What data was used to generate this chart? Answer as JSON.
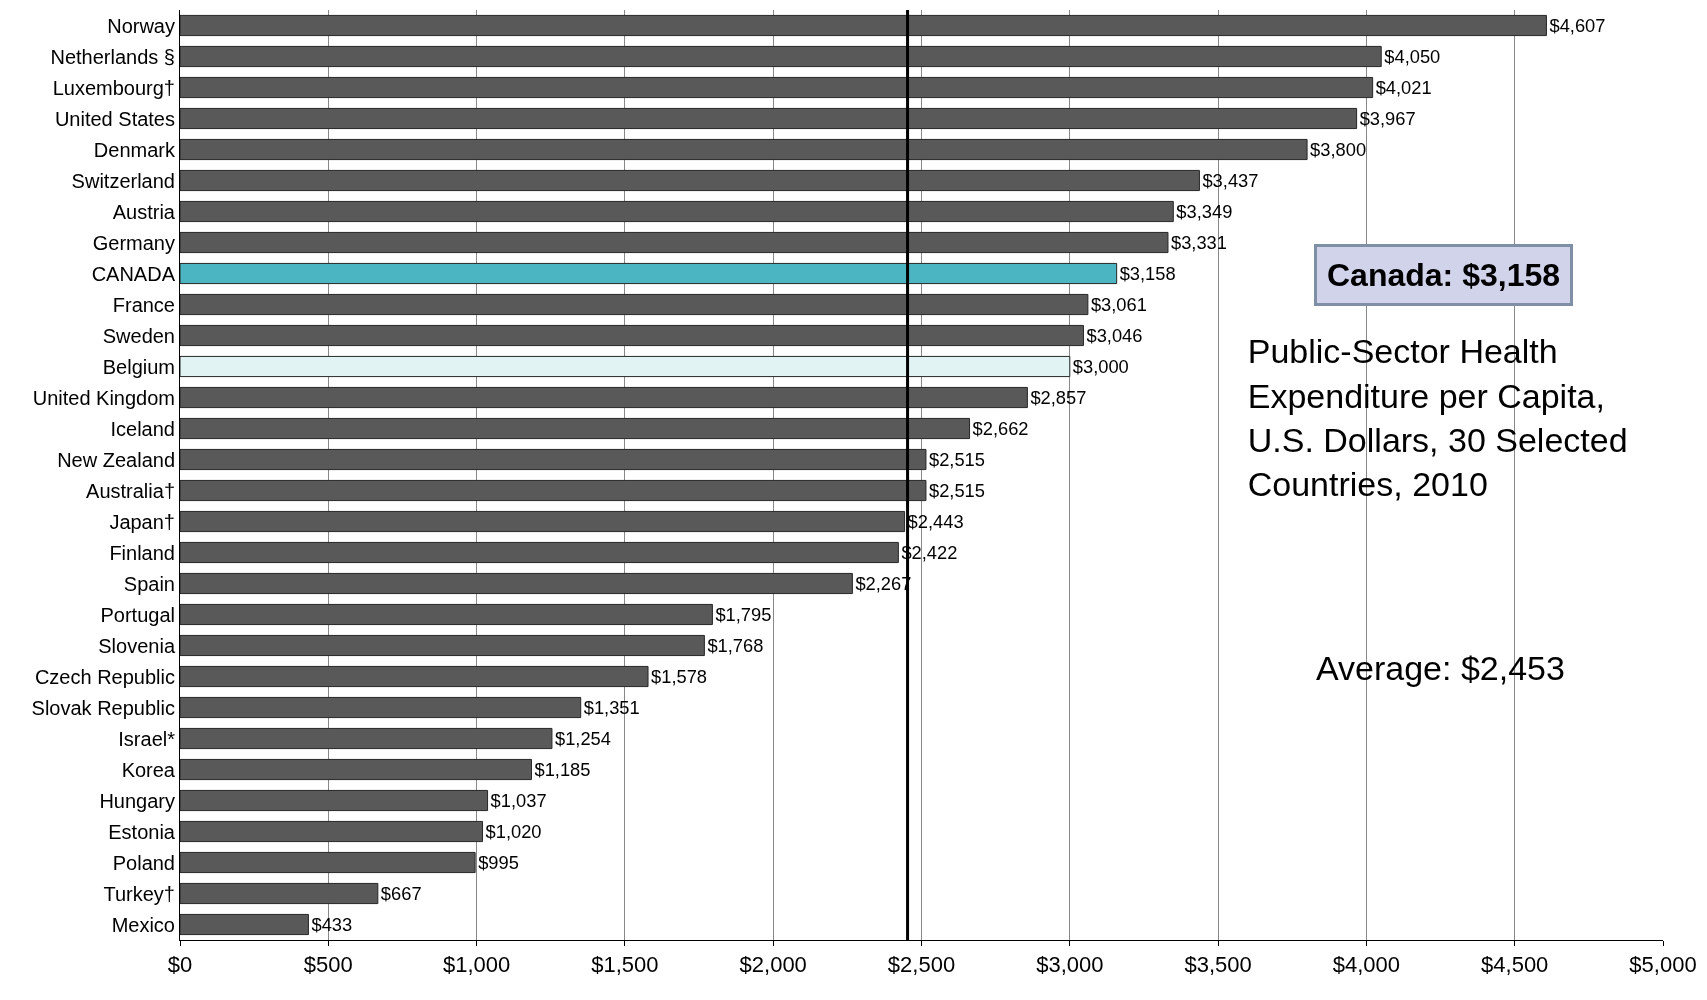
{
  "chart_data": {
    "type": "bar",
    "orientation": "horizontal",
    "title": "Public-Sector Health Expenditure per Capita, U.S. Dollars, 30 Selected Countries, 2010",
    "categories": [
      "Norway",
      "Netherlands §",
      "Luxembourg†",
      "United States",
      "Denmark",
      "Switzerland",
      "Austria",
      "Germany",
      "CANADA",
      "France",
      "Sweden",
      "Belgium",
      "United Kingdom",
      "Iceland",
      "New Zealand",
      "Australia†",
      "Japan†",
      "Finland",
      "Spain",
      "Portugal",
      "Slovenia",
      "Czech Republic",
      "Slovak Republic",
      "Israel*",
      "Korea",
      "Hungary",
      "Estonia",
      "Poland",
      "Turkey†",
      "Mexico"
    ],
    "values": [
      4607,
      4050,
      4021,
      3967,
      3800,
      3437,
      3349,
      3331,
      3158,
      3061,
      3046,
      3000,
      2857,
      2662,
      2515,
      2515,
      2443,
      2422,
      2267,
      1795,
      1768,
      1578,
      1351,
      1254,
      1185,
      1037,
      1020,
      995,
      667,
      433
    ],
    "value_labels": [
      "$4,607",
      "$4,050",
      "$4,021",
      "$3,967",
      "$3,800",
      "$3,437",
      "$3,349",
      "$3,331",
      "$3,158",
      "$3,061",
      "$3,046",
      "$3,000",
      "$2,857",
      "$2,662",
      "$2,515",
      "$2,515",
      "$2,443",
      "$2,422",
      "$2,267",
      "$1,795",
      "$1,768",
      "$1,578",
      "$1,351",
      "$1,254",
      "$1,185",
      "$1,037",
      "$1,020",
      "$995",
      "$667",
      "$433"
    ],
    "colors": [
      "#595959",
      "#595959",
      "#595959",
      "#595959",
      "#595959",
      "#595959",
      "#595959",
      "#595959",
      "#4bb5c1",
      "#595959",
      "#595959",
      "#e2f3f4",
      "#595959",
      "#595959",
      "#595959",
      "#595959",
      "#595959",
      "#595959",
      "#595959",
      "#595959",
      "#595959",
      "#595959",
      "#595959",
      "#595959",
      "#595959",
      "#595959",
      "#595959",
      "#595959",
      "#595959",
      "#595959"
    ],
    "xlim": [
      0,
      5000
    ],
    "xticks": [
      {
        "value": 0,
        "label": "$0"
      },
      {
        "value": 500,
        "label": "$500"
      },
      {
        "value": 1000,
        "label": "$1,000"
      },
      {
        "value": 1500,
        "label": "$1,500"
      },
      {
        "value": 2000,
        "label": "$2,000"
      },
      {
        "value": 2500,
        "label": "$2,500"
      },
      {
        "value": 3000,
        "label": "$3,000"
      },
      {
        "value": 3500,
        "label": "$3,500"
      },
      {
        "value": 4000,
        "label": "$4,000"
      },
      {
        "value": 4500,
        "label": "$4,500"
      },
      {
        "value": 5000,
        "label": "$5,000"
      }
    ],
    "grid": "x",
    "ref_lines": [
      {
        "axis": "x",
        "value": 2453,
        "label": "Average: $2,453",
        "color": "#000000"
      }
    ],
    "annotations": [
      "Canada: $3,158"
    ]
  }
}
